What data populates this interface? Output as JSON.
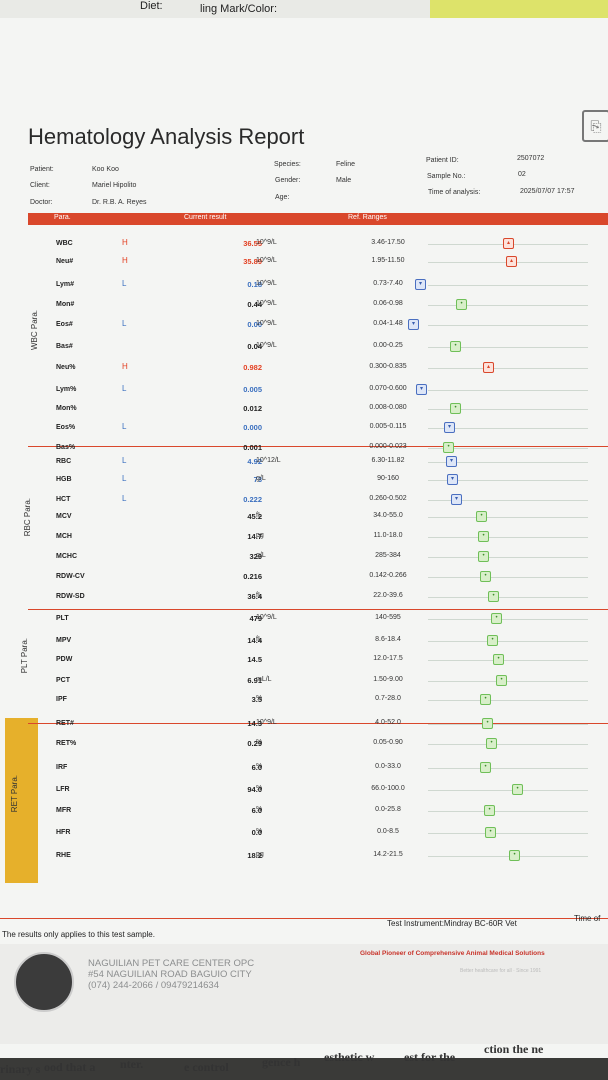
{
  "top": {
    "diet_label": "Diet:",
    "mark_label": "ling Mark/Color:"
  },
  "title": "Hematology Analysis Report",
  "corner_icon": "document-icon",
  "info": {
    "patient_label": "Patient:",
    "patient": "Koo Koo",
    "client_label": "Client:",
    "client": "Mariel Hipolito",
    "doctor_label": "Doctor:",
    "doctor": "Dr. R.B. A. Reyes",
    "species_label": "Species:",
    "species": "Feline",
    "gender_label": "Gender:",
    "gender": "Male",
    "age_label": "Age:",
    "age": "",
    "pid_label": "Patient ID:",
    "pid": "2507072",
    "sample_label": "Sample No.:",
    "sample": "02",
    "time_label": "Time of analysis:",
    "time": "2025/07/07 17:57"
  },
  "header": {
    "para": "Para.",
    "current": "Current result",
    "ref": "Ref. Ranges"
  },
  "groups": {
    "wbc": "WBC Para.",
    "rbc": "RBC Para.",
    "plt": "PLT Para.",
    "ret": "RET Para."
  },
  "rows": [
    {
      "p": "WBC",
      "f": "H",
      "v": "36.55",
      "u": "10^9/L",
      "r": "3.46-17.50",
      "m": "H"
    },
    {
      "p": "Neu#",
      "f": "H",
      "v": "35.89",
      "u": "10^9/L",
      "r": "1.95-11.50",
      "m": "H"
    },
    {
      "p": "Lym#",
      "f": "L",
      "v": "0.18",
      "u": "10^9/L",
      "r": "0.73-7.40",
      "m": "L"
    },
    {
      "p": "Mon#",
      "f": "",
      "v": "0.44",
      "u": "10^9/L",
      "r": "0.06-0.98",
      "m": "N"
    },
    {
      "p": "Eos#",
      "f": "L",
      "v": "0.00",
      "u": "10^9/L",
      "r": "0.04-1.48",
      "m": "L"
    },
    {
      "p": "Bas#",
      "f": "",
      "v": "0.04",
      "u": "10^9/L",
      "r": "0.00-0.25",
      "m": "N"
    },
    {
      "p": "Neu%",
      "f": "H",
      "v": "0.982",
      "u": "",
      "r": "0.300-0.835",
      "m": "H"
    },
    {
      "p": "Lym%",
      "f": "L",
      "v": "0.005",
      "u": "",
      "r": "0.070-0.600",
      "m": "L"
    },
    {
      "p": "Mon%",
      "f": "",
      "v": "0.012",
      "u": "",
      "r": "0.008-0.080",
      "m": "N"
    },
    {
      "p": "Eos%",
      "f": "L",
      "v": "0.000",
      "u": "",
      "r": "0.005-0.115",
      "m": "L"
    },
    {
      "p": "Bas%",
      "f": "",
      "v": "0.001",
      "u": "",
      "r": "0.000-0.023",
      "m": "N"
    },
    {
      "p": "RBC",
      "f": "L",
      "v": "4.92",
      "u": "10^12/L",
      "r": "6.30-11.82",
      "m": "L"
    },
    {
      "p": "HGB",
      "f": "L",
      "v": "73",
      "u": "g/L",
      "r": "90-160",
      "m": "L"
    },
    {
      "p": "HCT",
      "f": "L",
      "v": "0.222",
      "u": "",
      "r": "0.260-0.502",
      "m": "L"
    },
    {
      "p": "MCV",
      "f": "",
      "v": "45.2",
      "u": "fL",
      "r": "34.0-55.0",
      "m": "N"
    },
    {
      "p": "MCH",
      "f": "",
      "v": "14.7",
      "u": "pg",
      "r": "11.0-18.0",
      "m": "N"
    },
    {
      "p": "MCHC",
      "f": "",
      "v": "329",
      "u": "g/L",
      "r": "285-384",
      "m": "N"
    },
    {
      "p": "RDW-CV",
      "f": "",
      "v": "0.216",
      "u": "",
      "r": "0.142-0.266",
      "m": "N"
    },
    {
      "p": "RDW-SD",
      "f": "",
      "v": "36.4",
      "u": "fL",
      "r": "22.0-39.6",
      "m": "N"
    },
    {
      "p": "PLT",
      "f": "",
      "v": "479",
      "u": "10^9/L",
      "r": "140-595",
      "m": "N"
    },
    {
      "p": "MPV",
      "f": "",
      "v": "14.4",
      "u": "fL",
      "r": "8.6-18.4",
      "m": "N"
    },
    {
      "p": "PDW",
      "f": "",
      "v": "14.5",
      "u": "",
      "r": "12.0-17.5",
      "m": "N"
    },
    {
      "p": "PCT",
      "f": "",
      "v": "6.91",
      "u": "mL/L",
      "r": "1.50-9.00",
      "m": "N"
    },
    {
      "p": "IPF",
      "f": "",
      "v": "3.5",
      "u": "%",
      "r": "0.7-28.0",
      "m": "N"
    },
    {
      "p": "RET#",
      "f": "",
      "v": "14.3",
      "u": "10^9/L",
      "r": "4.0-52.0",
      "m": "N"
    },
    {
      "p": "RET%",
      "f": "",
      "v": "0.29",
      "u": "%",
      "r": "0.05-0.90",
      "m": "N"
    },
    {
      "p": "IRF",
      "f": "",
      "v": "6.0",
      "u": "%",
      "r": "0.0-33.0",
      "m": "N"
    },
    {
      "p": "LFR",
      "f": "",
      "v": "94.0",
      "u": "%",
      "r": "66.0-100.0",
      "m": "N"
    },
    {
      "p": "MFR",
      "f": "",
      "v": "6.0",
      "u": "%",
      "r": "0.0-25.8",
      "m": "N"
    },
    {
      "p": "HFR",
      "f": "",
      "v": "0.0",
      "u": "%",
      "r": "0.0-8.5",
      "m": "N"
    },
    {
      "p": "RHE",
      "f": "",
      "v": "18.2",
      "u": "pg",
      "r": "14.2-21.5",
      "m": "N"
    }
  ],
  "footer": {
    "note": "The results only applies to this test sample.",
    "instrument": "Test Instrument:Mindray BC-60R Vet",
    "time_of": "Time of",
    "clinic_name": "NAGUILIAN PET CARE CENTER OPC",
    "clinic_addr": "#54 NAGUILIAN ROAD BAGUIO CITY",
    "clinic_phone": "(074) 244-2066 / 09479214634",
    "slogan": "Global Pioneer of Comprehensive Animal Medical Solutions",
    "slogan2": "Better healthcare for all · Since 1991"
  },
  "bottom": [
    "rinary s",
    "ood that a",
    "nter.",
    "e control",
    "gence h",
    "esthetic w",
    "est for the",
    "ction the ne"
  ]
}
